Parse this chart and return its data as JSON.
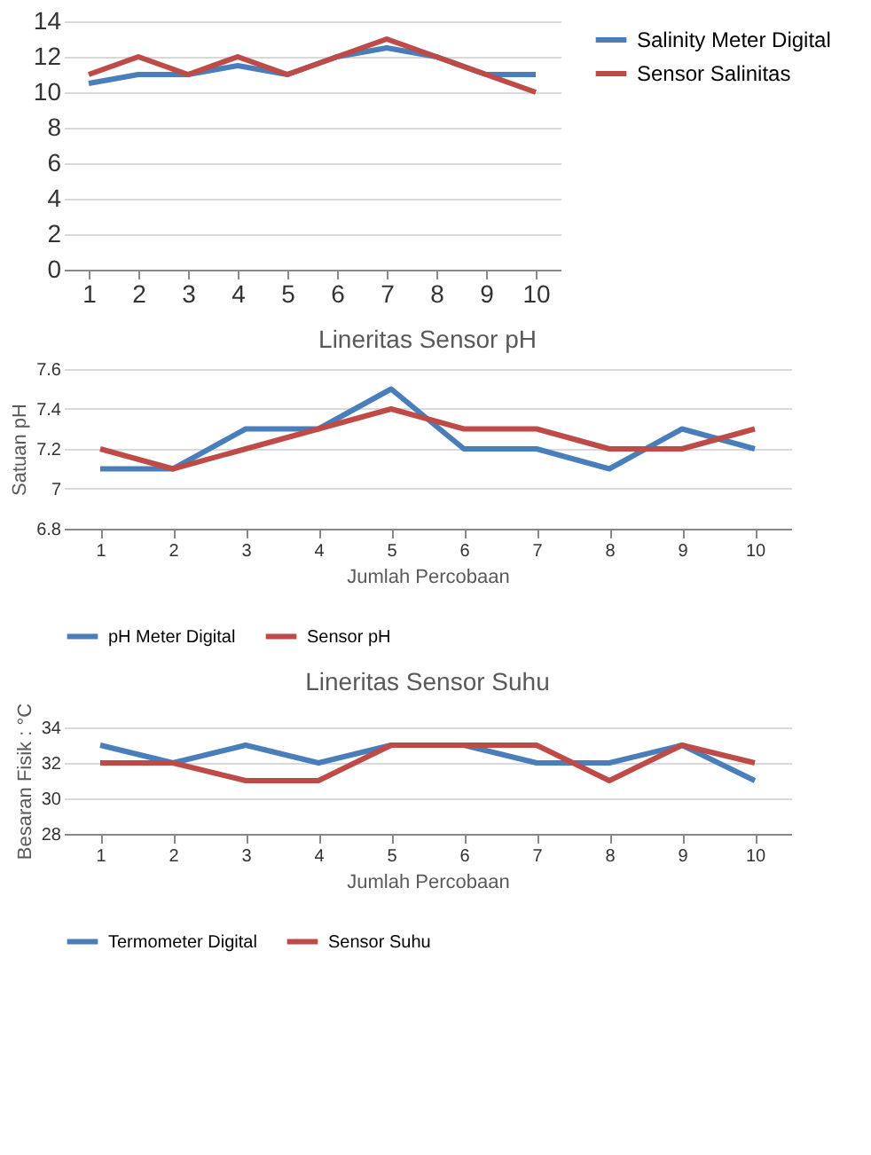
{
  "chart_data": [
    {
      "type": "line",
      "categories": [
        "1",
        "2",
        "3",
        "4",
        "5",
        "6",
        "7",
        "8",
        "9",
        "10"
      ],
      "ylim": [
        0,
        14
      ],
      "yticks": [
        0,
        2,
        4,
        6,
        8,
        10,
        12,
        14
      ],
      "grid": "y",
      "legend": "right",
      "series": [
        {
          "name": "Salinity Meter Digital",
          "color": "#4a7ebb",
          "values": [
            10.5,
            11,
            11,
            11.5,
            11,
            12,
            12.5,
            12,
            11,
            11
          ]
        },
        {
          "name": "Sensor Salinitas",
          "color": "#be4b48",
          "values": [
            11,
            12,
            11,
            12,
            11,
            12,
            13,
            12,
            11,
            10
          ]
        }
      ]
    },
    {
      "type": "line",
      "title": "Lineritas Sensor pH",
      "xlabel": "Jumlah Percobaan",
      "ylabel": "Satuan pH",
      "categories": [
        "1",
        "2",
        "3",
        "4",
        "5",
        "6",
        "7",
        "8",
        "9",
        "10"
      ],
      "ylim": [
        6.8,
        7.6
      ],
      "yticks": [
        6.8,
        7,
        7.2,
        7.4,
        7.6
      ],
      "grid": "y",
      "legend": "bottom",
      "series": [
        {
          "name": "pH Meter Digital",
          "color": "#4a7ebb",
          "values": [
            7.1,
            7.1,
            7.3,
            7.3,
            7.5,
            7.2,
            7.2,
            7.1,
            7.3,
            7.2
          ]
        },
        {
          "name": "Sensor pH",
          "color": "#be4b48",
          "values": [
            7.2,
            7.1,
            7.2,
            7.3,
            7.4,
            7.3,
            7.3,
            7.2,
            7.2,
            7.3
          ]
        }
      ]
    },
    {
      "type": "line",
      "title": "Lineritas Sensor Suhu",
      "xlabel": "Jumlah Percobaan",
      "ylabel": "Besaran Fisik : °C",
      "categories": [
        "1",
        "2",
        "3",
        "4",
        "5",
        "6",
        "7",
        "8",
        "9",
        "10"
      ],
      "ylim": [
        28,
        34
      ],
      "yticks": [
        28,
        30,
        32,
        34
      ],
      "grid": "y",
      "legend": "bottom",
      "series": [
        {
          "name": "Termometer Digital",
          "color": "#4a7ebb",
          "values": [
            33,
            32,
            33,
            32,
            33,
            33,
            32,
            32,
            33,
            31
          ]
        },
        {
          "name": "Sensor Suhu",
          "color": "#be4b48",
          "values": [
            32,
            32,
            31,
            31,
            33,
            33,
            33,
            31,
            33,
            32
          ]
        }
      ]
    }
  ]
}
